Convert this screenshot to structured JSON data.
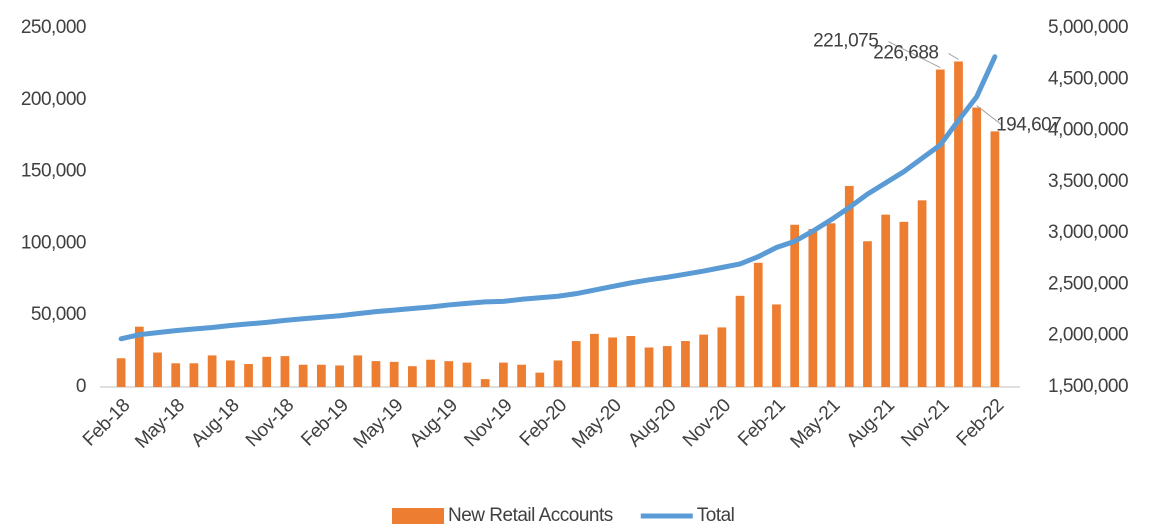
{
  "chart_data": {
    "type": "bar_line",
    "categories": [
      "Feb-18",
      null,
      null,
      "May-18",
      null,
      null,
      "Aug-18",
      null,
      null,
      "Nov-18",
      null,
      null,
      "Feb-19",
      null,
      null,
      "May-19",
      null,
      null,
      "Aug-19",
      null,
      null,
      "Nov-19",
      null,
      null,
      "Feb-20",
      null,
      null,
      "May-20",
      null,
      null,
      "Aug-20",
      null,
      null,
      "Nov-20",
      null,
      null,
      "Feb-21",
      null,
      null,
      "May-21",
      null,
      null,
      "Aug-21",
      null,
      null,
      "Nov-21",
      null,
      null,
      "Feb-22"
    ],
    "series": [
      {
        "name": "New Retail Accounts",
        "type": "bar",
        "color": "#ed7d31",
        "values": [
          20000,
          42000,
          24000,
          16500,
          16500,
          22000,
          18500,
          16000,
          21000,
          21500,
          15500,
          15500,
          15000,
          22000,
          18000,
          17500,
          14500,
          19000,
          18000,
          17000,
          5500,
          17000,
          15500,
          10000,
          18500,
          32000,
          37000,
          34500,
          35500,
          27500,
          28500,
          32000,
          36500,
          41500,
          63500,
          86500,
          57500,
          113000,
          110000,
          114000,
          140000,
          101500,
          120000,
          115000,
          130000,
          221075,
          226688,
          194607,
          178000
        ],
        "value_labels": [
          null,
          null,
          null,
          null,
          null,
          null,
          null,
          null,
          null,
          null,
          null,
          null,
          null,
          null,
          null,
          null,
          null,
          null,
          null,
          null,
          null,
          null,
          null,
          null,
          null,
          null,
          null,
          null,
          null,
          null,
          null,
          null,
          null,
          null,
          null,
          null,
          null,
          null,
          null,
          null,
          null,
          null,
          null,
          null,
          null,
          "221,075",
          "226,688",
          "194,607",
          null
        ]
      },
      {
        "name": "Total",
        "type": "line",
        "axis": "y2",
        "color": "#5b9bd5",
        "values": [
          1970000,
          2010000,
          2030000,
          2050000,
          2065000,
          2080000,
          2100000,
          2115000,
          2130000,
          2150000,
          2165000,
          2180000,
          2195000,
          2215000,
          2235000,
          2250000,
          2265000,
          2280000,
          2300000,
          2315000,
          2330000,
          2335000,
          2355000,
          2370000,
          2385000,
          2410000,
          2445000,
          2480000,
          2515000,
          2545000,
          2570000,
          2600000,
          2630000,
          2665000,
          2700000,
          2770000,
          2860000,
          2920000,
          3020000,
          3130000,
          3250000,
          3380000,
          3490000,
          3600000,
          3730000,
          3860000,
          4100000,
          4330000,
          4720000
        ]
      }
    ],
    "ylim": [
      0,
      250000
    ],
    "yticks": [
      0,
      {
        "value": 50000,
        "label": "50,000"
      },
      {
        "value": 100000,
        "label": "100,000"
      },
      {
        "value": 150000,
        "label": "150,000"
      },
      {
        "value": 200000,
        "label": "200,000"
      },
      {
        "value": 250000,
        "label": "250,000"
      }
    ],
    "y2lim": [
      1500000,
      5000000
    ],
    "y2ticks": [
      {
        "value": 1500000,
        "label": "1,500,000"
      },
      {
        "value": 2000000,
        "label": "2,000,000"
      },
      {
        "value": 2500000,
        "label": "2,500,000"
      },
      {
        "value": 3000000,
        "label": "3,000,000"
      },
      {
        "value": 3500000,
        "label": "3,500,000"
      },
      {
        "value": 4000000,
        "label": "4,000,000"
      },
      {
        "value": 4500000,
        "label": "4,500,000"
      },
      {
        "value": 5000000,
        "label": "5,000,000"
      }
    ],
    "grid": false,
    "legend": "bottom"
  }
}
